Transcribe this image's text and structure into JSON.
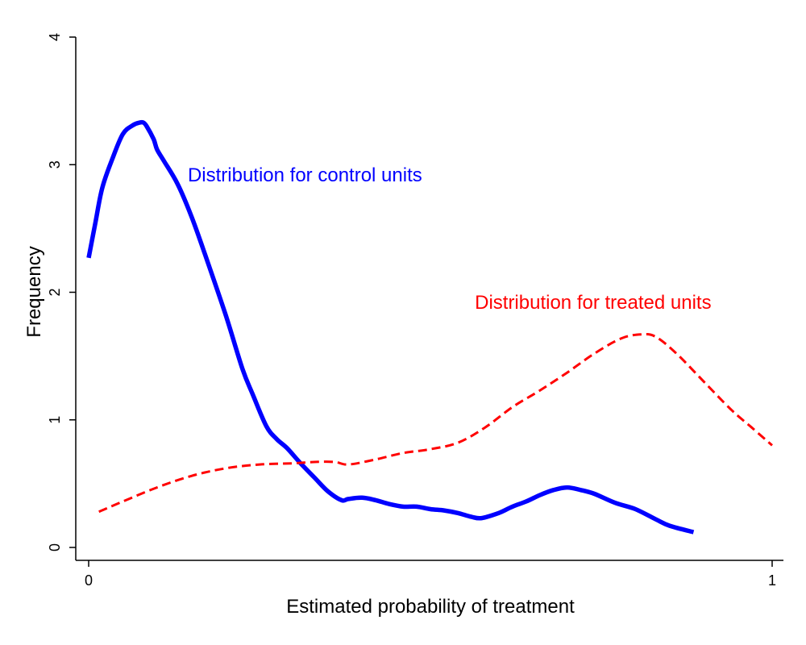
{
  "chart_data": {
    "type": "line",
    "xlabel": "Estimated probability of treatment",
    "ylabel": "Frequency",
    "xlim": [
      0,
      1
    ],
    "ylim": [
      0,
      4
    ],
    "x_ticks": [
      "0",
      "1"
    ],
    "x_tick_values": [
      0,
      1
    ],
    "y_ticks": [
      "0",
      "1",
      "2",
      "3",
      "4"
    ],
    "y_tick_values": [
      0,
      1,
      2,
      3,
      4
    ],
    "grid": false,
    "legend": "none",
    "series": [
      {
        "name": "Distribution for control units",
        "color": "#0000ff",
        "style": "solid",
        "x": [
          0.0,
          0.01,
          0.02,
          0.035,
          0.05,
          0.065,
          0.075,
          0.08,
          0.085,
          0.095,
          0.1,
          0.11,
          0.13,
          0.15,
          0.17,
          0.2,
          0.225,
          0.24,
          0.26,
          0.275,
          0.29,
          0.31,
          0.33,
          0.35,
          0.37,
          0.38,
          0.4,
          0.42,
          0.44,
          0.46,
          0.48,
          0.5,
          0.52,
          0.54,
          0.56,
          0.575,
          0.6,
          0.62,
          0.64,
          0.66,
          0.68,
          0.7,
          0.72,
          0.74,
          0.77,
          0.8,
          0.83,
          0.85,
          0.885
        ],
        "y": [
          2.27,
          2.55,
          2.82,
          3.05,
          3.24,
          3.31,
          3.33,
          3.33,
          3.3,
          3.2,
          3.12,
          3.03,
          2.85,
          2.6,
          2.3,
          1.83,
          1.4,
          1.2,
          0.95,
          0.85,
          0.78,
          0.66,
          0.55,
          0.44,
          0.37,
          0.38,
          0.39,
          0.37,
          0.34,
          0.32,
          0.32,
          0.3,
          0.29,
          0.27,
          0.24,
          0.23,
          0.27,
          0.32,
          0.36,
          0.41,
          0.45,
          0.47,
          0.45,
          0.42,
          0.35,
          0.3,
          0.22,
          0.17,
          0.12
        ],
        "label": "Distribution for control units"
      },
      {
        "name": "Distribution for treated units",
        "color": "#ff0000",
        "style": "dashed",
        "x": [
          0.015,
          0.05,
          0.1,
          0.15,
          0.2,
          0.25,
          0.3,
          0.33,
          0.36,
          0.38,
          0.42,
          0.46,
          0.5,
          0.54,
          0.58,
          0.62,
          0.66,
          0.7,
          0.74,
          0.78,
          0.81,
          0.83,
          0.86,
          0.9,
          0.94,
          0.97,
          1.0
        ],
        "y": [
          0.28,
          0.36,
          0.47,
          0.56,
          0.62,
          0.65,
          0.66,
          0.67,
          0.67,
          0.65,
          0.69,
          0.74,
          0.77,
          0.82,
          0.94,
          1.1,
          1.23,
          1.37,
          1.52,
          1.64,
          1.67,
          1.65,
          1.52,
          1.3,
          1.08,
          0.94,
          0.8
        ],
        "label": "Distribution for treated units"
      }
    ],
    "annotations": [
      {
        "text": "Distribution for control units",
        "color": "#0000ff",
        "x": 0.145,
        "y": 2.87
      },
      {
        "text": "Distribution for treated units",
        "color": "#ff0000",
        "x": 0.565,
        "y": 1.87
      }
    ]
  }
}
